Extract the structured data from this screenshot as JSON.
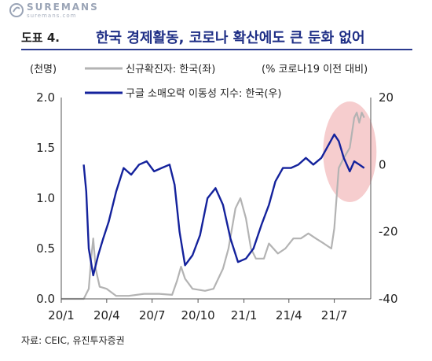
{
  "watermark": {
    "brand": "SUREMANS",
    "sub": "suremans.com"
  },
  "header": {
    "figure_no": "도표 4.",
    "title": "한국 경제활동, 코로나 확산에도 큰 둔화 없어"
  },
  "source": "자료: CEIC, 유진투자증권",
  "colors": {
    "series1": "#b3b3b3",
    "series2": "#14229c",
    "highlight": "#f4c4c6",
    "rule": "#2b3a8f"
  },
  "chart_data": {
    "type": "line",
    "left_axis_label": "(천명)",
    "right_axis_label": "(% 코로나19 이전 대비)",
    "x_ticks": [
      "20/1",
      "20/4",
      "20/7",
      "20/10",
      "21/1",
      "21/4",
      "21/7"
    ],
    "y_left": {
      "min": 0,
      "max": 2.0,
      "ticks": [
        "0.0",
        "0.5",
        "1.0",
        "1.5",
        "2.0"
      ]
    },
    "y_right": {
      "min": -40,
      "max": 20,
      "ticks": [
        "-40",
        "-20",
        "0",
        "20"
      ]
    },
    "highlight": "oval around late 2021 values (Jul–Aug 2021)",
    "series": [
      {
        "name": "신규확진자: 한국(좌)",
        "axis": "left",
        "color": "#b3b3b3",
        "points": [
          [
            "2020-01-01",
            0.0
          ],
          [
            "2020-02-15",
            0.0
          ],
          [
            "2020-02-25",
            0.1
          ],
          [
            "2020-03-01",
            0.4
          ],
          [
            "2020-03-05",
            0.6
          ],
          [
            "2020-03-10",
            0.3
          ],
          [
            "2020-03-18",
            0.12
          ],
          [
            "2020-04-01",
            0.1
          ],
          [
            "2020-04-20",
            0.03
          ],
          [
            "2020-05-15",
            0.03
          ],
          [
            "2020-06-15",
            0.05
          ],
          [
            "2020-07-15",
            0.05
          ],
          [
            "2020-08-10",
            0.04
          ],
          [
            "2020-08-20",
            0.18
          ],
          [
            "2020-08-28",
            0.32
          ],
          [
            "2020-09-05",
            0.2
          ],
          [
            "2020-09-20",
            0.1
          ],
          [
            "2020-10-15",
            0.08
          ],
          [
            "2020-11-01",
            0.1
          ],
          [
            "2020-11-20",
            0.3
          ],
          [
            "2020-12-01",
            0.5
          ],
          [
            "2020-12-15",
            0.9
          ],
          [
            "2020-12-25",
            1.0
          ],
          [
            "2021-01-05",
            0.8
          ],
          [
            "2021-01-15",
            0.5
          ],
          [
            "2021-01-25",
            0.4
          ],
          [
            "2021-02-10",
            0.4
          ],
          [
            "2021-02-20",
            0.55
          ],
          [
            "2021-03-10",
            0.45
          ],
          [
            "2021-03-25",
            0.5
          ],
          [
            "2021-04-10",
            0.6
          ],
          [
            "2021-04-25",
            0.6
          ],
          [
            "2021-05-10",
            0.65
          ],
          [
            "2021-05-25",
            0.6
          ],
          [
            "2021-06-10",
            0.55
          ],
          [
            "2021-06-25",
            0.5
          ],
          [
            "2021-07-01",
            0.7
          ],
          [
            "2021-07-10",
            1.3
          ],
          [
            "2021-07-20",
            1.4
          ],
          [
            "2021-08-01",
            1.5
          ],
          [
            "2021-08-10",
            1.8
          ],
          [
            "2021-08-15",
            1.85
          ],
          [
            "2021-08-20",
            1.75
          ],
          [
            "2021-08-25",
            1.85
          ],
          [
            "2021-08-30",
            1.8
          ]
        ]
      },
      {
        "name": "구글 소매오락 이동성 지수: 한국(우)",
        "axis": "right",
        "color": "#14229c",
        "points": [
          [
            "2020-02-15",
            0
          ],
          [
            "2020-02-20",
            -8
          ],
          [
            "2020-02-25",
            -25
          ],
          [
            "2020-03-05",
            -33
          ],
          [
            "2020-03-15",
            -27
          ],
          [
            "2020-03-25",
            -22
          ],
          [
            "2020-04-05",
            -17
          ],
          [
            "2020-04-20",
            -8
          ],
          [
            "2020-05-05",
            -1
          ],
          [
            "2020-05-20",
            -3
          ],
          [
            "2020-06-05",
            0
          ],
          [
            "2020-06-20",
            1
          ],
          [
            "2020-07-05",
            -2
          ],
          [
            "2020-07-20",
            -1
          ],
          [
            "2020-08-05",
            0
          ],
          [
            "2020-08-15",
            -6
          ],
          [
            "2020-08-25",
            -20
          ],
          [
            "2020-09-05",
            -30
          ],
          [
            "2020-09-20",
            -27
          ],
          [
            "2020-10-05",
            -21
          ],
          [
            "2020-10-20",
            -10
          ],
          [
            "2020-11-05",
            -7
          ],
          [
            "2020-11-20",
            -12
          ],
          [
            "2020-12-05",
            -22
          ],
          [
            "2020-12-20",
            -29
          ],
          [
            "2021-01-05",
            -28
          ],
          [
            "2021-01-20",
            -25
          ],
          [
            "2021-02-05",
            -18
          ],
          [
            "2021-02-20",
            -12
          ],
          [
            "2021-03-05",
            -5
          ],
          [
            "2021-03-20",
            -1
          ],
          [
            "2021-04-05",
            -1
          ],
          [
            "2021-04-20",
            0
          ],
          [
            "2021-05-05",
            2
          ],
          [
            "2021-05-20",
            0
          ],
          [
            "2021-06-05",
            2
          ],
          [
            "2021-06-20",
            6
          ],
          [
            "2021-07-01",
            9
          ],
          [
            "2021-07-10",
            7
          ],
          [
            "2021-07-20",
            2
          ],
          [
            "2021-08-01",
            -2
          ],
          [
            "2021-08-10",
            1
          ],
          [
            "2021-08-20",
            0
          ],
          [
            "2021-08-30",
            -1
          ]
        ]
      }
    ]
  }
}
